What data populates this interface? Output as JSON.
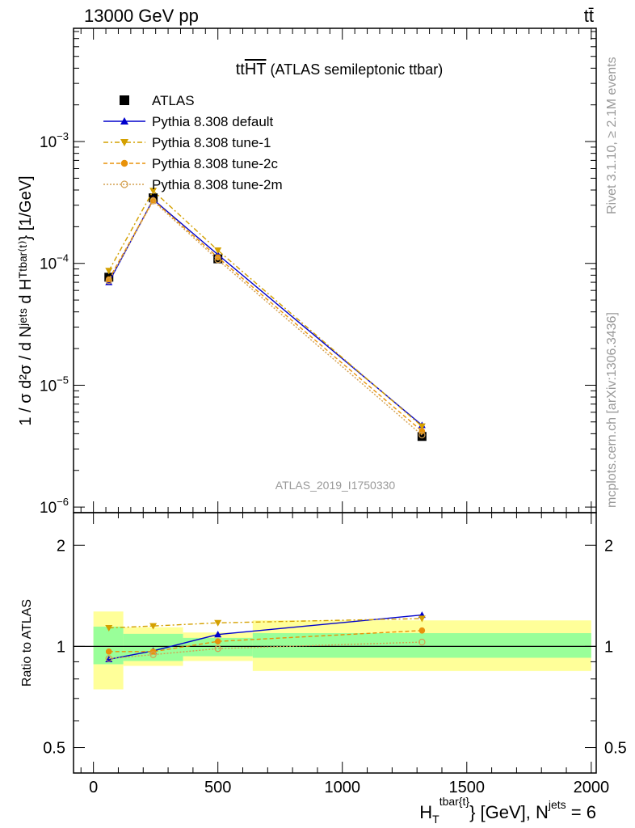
{
  "header": {
    "left": "13000 GeV pp",
    "right": "tt̄"
  },
  "side_text": {
    "rivet": "Rivet 3.1.10, ≥ 2.1M events",
    "mcplots": "mcplots.cern.ch [arXiv:1306.3436]"
  },
  "chart_data": [
    {
      "type": "line",
      "panel": "main",
      "title_main": "tt",
      "title_over": "HT",
      "title_rest": " (ATLAS semileptonic ttbar)",
      "analysis_label": "ATLAS_2019_I1750330",
      "ylabel": "1 / σ d²σ / d Nʲᵉᵗˢ d Hᵀᵗᵇᵃʳ⁽ᵗ⁾} [1/GeV]",
      "yscale": "log",
      "xlim": [
        -80,
        2020
      ],
      "ylim": [
        9e-07,
        0.0085
      ],
      "y_tick_labels": [
        {
          "value": 1e-06,
          "base": "10",
          "exp": "−6"
        },
        {
          "value": 1e-05,
          "base": "10",
          "exp": "−5"
        },
        {
          "value": 0.0001,
          "base": "10",
          "exp": "−4"
        },
        {
          "value": 0.001,
          "base": "10",
          "exp": "−3"
        }
      ],
      "x": [
        62,
        240,
        500,
        1320
      ],
      "legend_position": "top-left",
      "series": [
        {
          "name": "ATLAS",
          "color": "#000000",
          "marker": "square",
          "dash": "",
          "values": [
            7.7e-05,
            0.000345,
            0.000109,
            3.8e-06
          ]
        },
        {
          "name": "Pythia 8.308 default",
          "color": "#0000cc",
          "marker": "triangle-up",
          "dash": "",
          "values": [
            7e-05,
            0.000335,
            0.000118,
            4.7e-06
          ]
        },
        {
          "name": "Pythia 8.308 tune-1",
          "color": "#d4a000",
          "marker": "triangle-down",
          "dash": "6,3,2,3",
          "values": [
            8.7e-05,
            0.000395,
            0.000128,
            4.6e-06
          ]
        },
        {
          "name": "Pythia 8.308 tune-2c",
          "color": "#e8920a",
          "marker": "circle",
          "dash": "5,3",
          "values": [
            7.4e-05,
            0.00033,
            0.000112,
            4.2e-06
          ]
        },
        {
          "name": "Pythia 8.308 tune-2m",
          "color": "#d4a050",
          "marker": "circle-open",
          "dash": "2,2",
          "values": [
            7.2e-05,
            0.000325,
            0.000107,
            3.9e-06
          ]
        }
      ]
    },
    {
      "type": "line",
      "panel": "ratio",
      "ylabel": "Ratio to ATLAS",
      "xlabel_main": "H",
      "xlabel_sub": "T",
      "xlabel_sup": "tbar{t}",
      "xlabel_rest": "} [GeV], N",
      "xlabel_sup2": "jets",
      "xlabel_end": " = 6",
      "xlim": [
        -80,
        2020
      ],
      "ylim": [
        0.42,
        2.5
      ],
      "yscale": "log",
      "x_ticks": [
        0,
        500,
        1000,
        1500,
        2000
      ],
      "x_tick_labels": [
        "0",
        "500",
        "1000",
        "1500",
        "2000"
      ],
      "y_ticks": [
        0.5,
        1,
        2
      ],
      "y_tick_labels": [
        "0.5",
        "1",
        "2"
      ],
      "bands": [
        {
          "x0": 0,
          "x1": 120,
          "green": [
            0.885,
            1.145
          ],
          "yellow": [
            0.745,
            1.27
          ]
        },
        {
          "x0": 120,
          "x1": 360,
          "green": [
            0.905,
            1.09
          ],
          "yellow": [
            0.875,
            1.14
          ]
        },
        {
          "x0": 360,
          "x1": 640,
          "green": [
            0.935,
            1.06
          ],
          "yellow": [
            0.905,
            1.1
          ]
        },
        {
          "x0": 640,
          "x1": 2000,
          "green": [
            0.925,
            1.095
          ],
          "yellow": [
            0.845,
            1.195
          ]
        }
      ],
      "x": [
        62,
        240,
        500,
        1320
      ],
      "series": [
        {
          "name": "Pythia 8.308 default",
          "color": "#0000cc",
          "marker": "triangle-up",
          "dash": "",
          "values": [
            0.915,
            0.97,
            1.085,
            1.24
          ]
        },
        {
          "name": "Pythia 8.308 tune-1",
          "color": "#d4a000",
          "marker": "triangle-down",
          "dash": "6,3,2,3",
          "values": [
            1.135,
            1.15,
            1.175,
            1.21
          ]
        },
        {
          "name": "Pythia 8.308 tune-2c",
          "color": "#e8920a",
          "marker": "circle",
          "dash": "5,3",
          "values": [
            0.965,
            0.965,
            1.035,
            1.115
          ]
        },
        {
          "name": "Pythia 8.308 tune-2m",
          "color": "#d4a050",
          "marker": "circle-open",
          "dash": "2,2",
          "values": [
            0.92,
            0.945,
            0.985,
            1.03
          ]
        }
      ]
    }
  ]
}
